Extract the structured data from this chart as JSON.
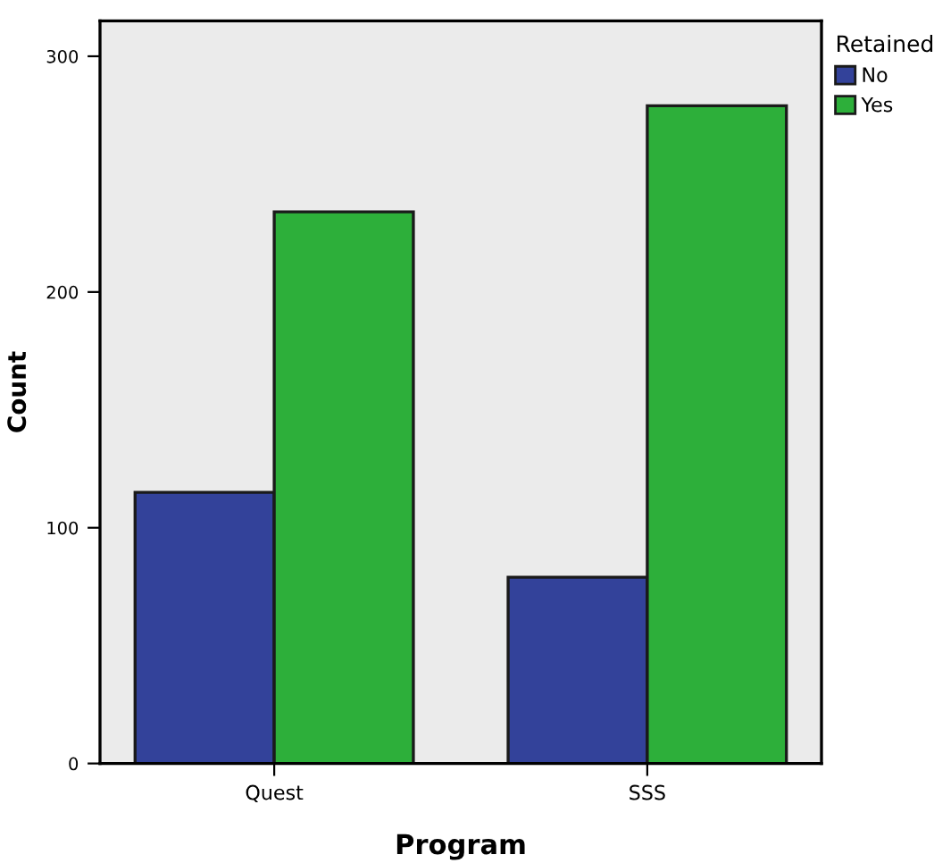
{
  "chart_data": {
    "type": "bar",
    "xlabel": "Program",
    "ylabel": "Count",
    "legend_title": "Retained",
    "categories": [
      "Quest",
      "SSS"
    ],
    "series": [
      {
        "name": "No",
        "color": "#33429a",
        "values": [
          115,
          79
        ]
      },
      {
        "name": "Yes",
        "color": "#2daf3a",
        "values": [
          234,
          279
        ]
      }
    ],
    "ylim": [
      0,
      315
    ],
    "yticks": [
      0,
      100,
      200,
      300
    ],
    "grid": false,
    "legend": "top right"
  }
}
